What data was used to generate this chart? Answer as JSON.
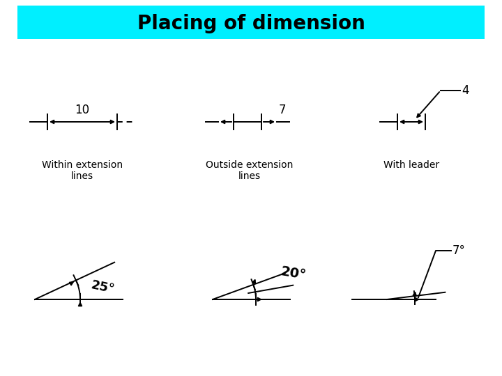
{
  "title": "Placing of dimension",
  "title_bg_color": "#00EFFF",
  "title_font_size": 20,
  "bg_color": "#FFFFFF",
  "labels": [
    "Within extension\nlines",
    "Outside extension\nlines",
    "With leader"
  ],
  "label_fontsize": 10,
  "dim1_value": "10",
  "dim2_value": "7",
  "dim3_value": "4",
  "angle1_value": "25",
  "angle2_value": "20",
  "angle3_value": "7"
}
